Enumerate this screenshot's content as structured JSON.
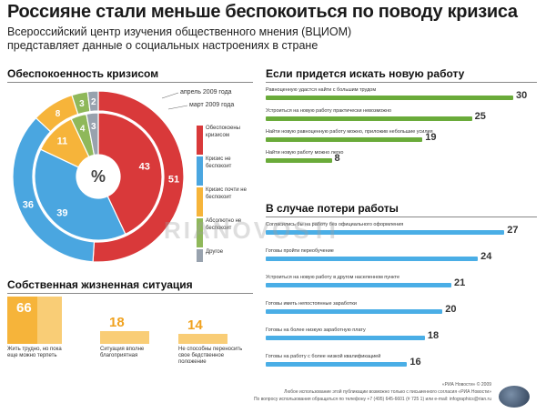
{
  "header": {
    "title": "Россияне стали меньше беспокоиться по поводу кризиса",
    "subtitle": "Всероссийский центр изучения общественного мнения (ВЦИОМ) представляет данные о социальных настроениях в стране"
  },
  "donut": {
    "section_title": "Обеспокоенность кризисом",
    "center_symbol": "%",
    "ring_labels": {
      "outer": "март 2009 года",
      "inner": "апрель 2009 года"
    },
    "legend": [
      {
        "label": "Обеспокоены кризисом",
        "color": "#d9393a"
      },
      {
        "label": "Кризис не беспокоит",
        "color": "#4aa6e0"
      },
      {
        "label": "Кризис почти не беспокоит",
        "color": "#f6b43a"
      },
      {
        "label": "Абсолютно не беспокоит",
        "color": "#8fb85a"
      },
      {
        "label": "Другое",
        "color": "#98a2ae"
      }
    ]
  },
  "jobsearch": {
    "section_title": "Если придется искать новую работу"
  },
  "jobloss": {
    "section_title": "В случае потери работы"
  },
  "situation": {
    "section_title": "Собственная жизненная ситуация"
  },
  "footer": {
    "line1": "«РИА Новости» © 2009",
    "line2": "Любое использование этой публикации возможно только с письменного согласия «РИА Новости»",
    "line3": "По вопросу использования обращаться по телефону +7 (495) 645-6601 (# 725 1) или e-mail: infographics@rian.ru"
  },
  "watermark": "RIANOVOSTI",
  "chart_data": [
    {
      "type": "pie",
      "title": "Обеспокоенность кризисом",
      "categories": [
        "Обеспокоены кризисом",
        "Кризис не беспокоит",
        "Кризис почти не беспокоит",
        "Абсолютно не беспокоит",
        "Другое"
      ],
      "series": [
        {
          "name": "март 2009 года",
          "values": [
            51,
            36,
            8,
            3,
            2
          ],
          "labels": [
            "51",
            "36",
            "8",
            "3",
            "2"
          ]
        },
        {
          "name": "апрель 2009 года",
          "values": [
            43,
            39,
            11,
            4,
            3
          ],
          "labels": [
            "43",
            "39",
            "11",
            "4",
            "3"
          ]
        }
      ],
      "colors": [
        "#d9393a",
        "#4aa6e0",
        "#f6b43a",
        "#8fb85a",
        "#98a2ae"
      ]
    },
    {
      "type": "bar",
      "title": "Если придется искать новую работу",
      "categories": [
        "Равноценную удастся найти с большим трудом",
        "Устроиться на новую работу практически невозможно",
        "Найти новую равноценную работу можно, приложив небольшие усилия",
        "Найти новую работу можно легко"
      ],
      "values": [
        30,
        25,
        19,
        8
      ],
      "labels": [
        "30",
        "25",
        "19",
        "8"
      ],
      "color": "#6aab3a"
    },
    {
      "type": "bar",
      "title": "В случае потери работы",
      "categories": [
        "Согласились бы на работу без официального оформления",
        "Готовы пройти переобучение",
        "Устроиться на новую работу в другом населенном пункте",
        "Готовы иметь непостоянные заработки",
        "Готовы на более низкую заработную плату",
        "Готовы на работу с более низкой квалификацией"
      ],
      "values": [
        27,
        24,
        21,
        20,
        18,
        16
      ],
      "labels": [
        "27",
        "24",
        "21",
        "20",
        "18",
        "16"
      ],
      "color": "#4aaee6"
    },
    {
      "type": "bar",
      "title": "Собственная жизненная ситуация",
      "categories": [
        "Жить трудно, но пока еще можно терпеть",
        "Ситуация вполне благоприятная",
        "Не способны переносить свое бедственное положение"
      ],
      "values": [
        66,
        18,
        14
      ],
      "labels": [
        "66",
        "18",
        "14"
      ],
      "color": "#f6b43a"
    }
  ]
}
